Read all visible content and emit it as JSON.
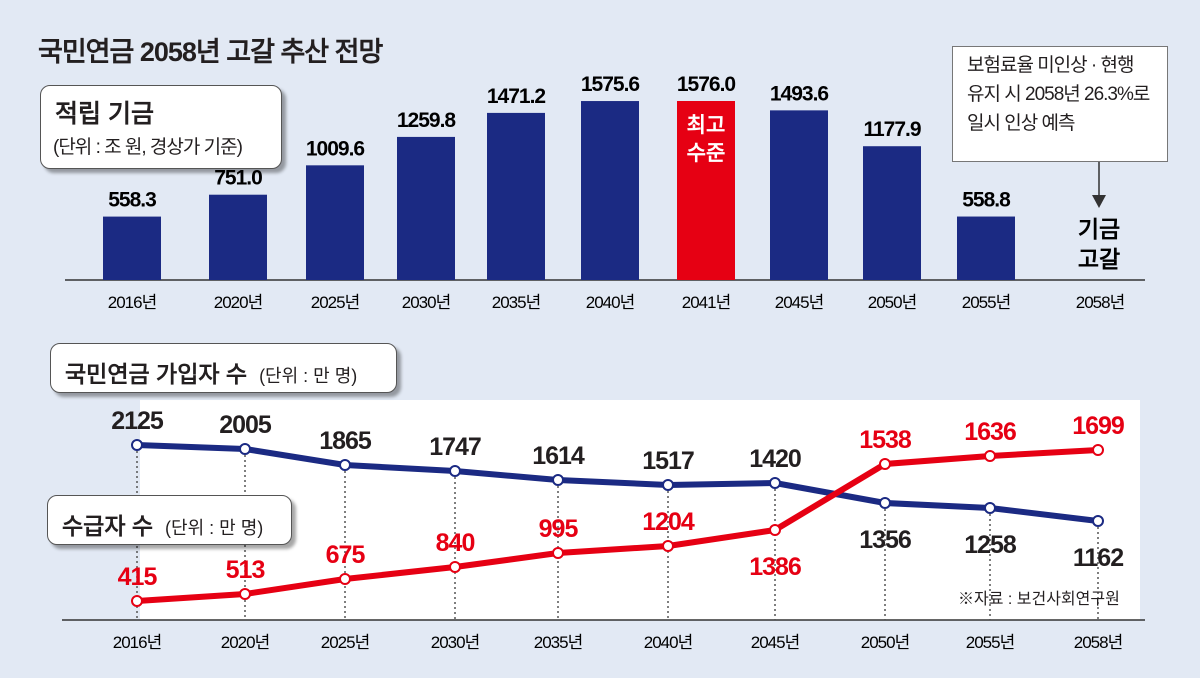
{
  "title": "국민연금 2058년 고갈 추산 전망",
  "chart_data": [
    {
      "type": "bar",
      "title": "적립 기금",
      "unit_label": "(단위 : 조 원, 경상가 기준)",
      "categories": [
        "2016년",
        "2020년",
        "2025년",
        "2030년",
        "2035년",
        "2040년",
        "2041년",
        "2045년",
        "2050년",
        "2055년",
        "2058년"
      ],
      "values": [
        558.3,
        751.0,
        1009.6,
        1259.8,
        1471.2,
        1575.6,
        1576.0,
        1493.6,
        1177.9,
        558.8,
        null
      ],
      "value_labels": [
        "558.3",
        "751.0",
        "1009.6",
        "1259.8",
        "1471.2",
        "1575.6",
        "1576.0",
        "1493.6",
        "1177.9",
        "558.8",
        ""
      ],
      "highlight_index": 6,
      "highlight_label": [
        "최고",
        "수준"
      ],
      "depletion_label": [
        "기금",
        "고갈"
      ],
      "annotation": [
        "보험료율 미인상 · 현행",
        "유지 시 2058년 26.3%로",
        "일시 인상 예측"
      ],
      "colors": {
        "bar": "#1b2a83",
        "highlight": "#e60013"
      }
    },
    {
      "type": "line",
      "categories": [
        "2016년",
        "2020년",
        "2025년",
        "2030년",
        "2035년",
        "2040년",
        "2045년",
        "2050년",
        "2055년",
        "2058년"
      ],
      "series": [
        {
          "name": "국민연금 가입자 수",
          "unit_label": "(단위 : 만 명)",
          "color": "#1b2a83",
          "values": [
            2125,
            2005,
            1865,
            1747,
            1614,
            1517,
            1420,
            1356,
            1258,
            1162
          ]
        },
        {
          "name": "수급자 수",
          "unit_label": "(단위 : 만 명)",
          "color": "#e60013",
          "values": [
            415,
            513,
            675,
            840,
            995,
            1204,
            1386,
            1538,
            1636,
            1699
          ]
        }
      ],
      "source": "※자료 : 보건사회연구원"
    }
  ]
}
